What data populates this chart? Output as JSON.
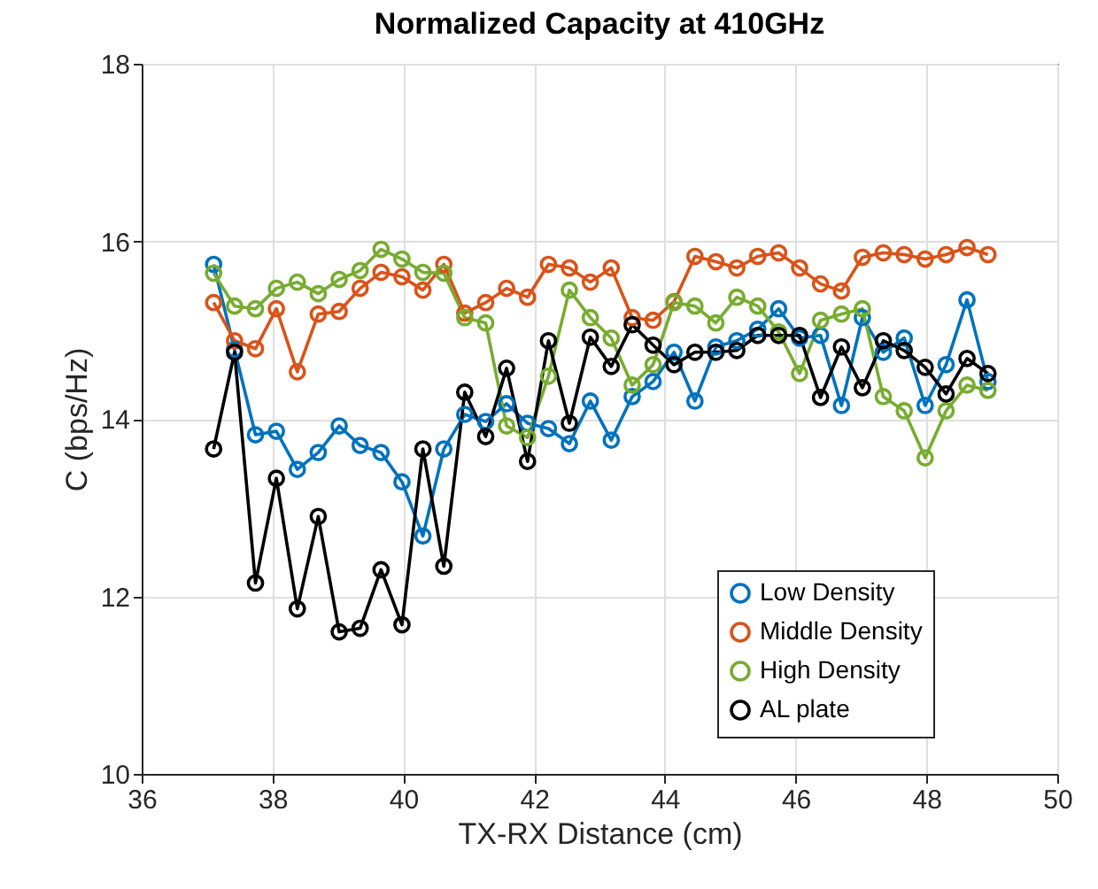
{
  "chart_data": {
    "type": "line",
    "title": "Normalized Capacity at 410GHz",
    "xlabel": "TX-RX Distance (cm)",
    "ylabel": "C (bps/Hz)",
    "x": [
      37.1,
      37.42,
      37.74,
      38.06,
      38.38,
      38.7,
      39.02,
      39.34,
      39.66,
      39.98,
      40.3,
      40.62,
      40.94,
      41.26,
      41.58,
      41.9,
      42.22,
      42.54,
      42.86,
      43.18,
      43.5,
      43.82,
      44.14,
      44.46,
      44.78,
      45.1,
      45.42,
      45.74,
      46.06,
      46.38,
      46.7,
      47.02,
      47.34,
      47.66,
      47.98,
      48.3,
      48.62,
      48.94
    ],
    "series": [
      {
        "name": "Low Density",
        "color": "#0072bd",
        "values": [
          15.74,
          14.78,
          13.82,
          13.86,
          13.43,
          13.62,
          13.92,
          13.7,
          13.62,
          13.29,
          12.68,
          13.66,
          14.05,
          13.97,
          14.17,
          13.95,
          13.89,
          13.72,
          14.2,
          13.76,
          14.25,
          14.42,
          14.75,
          14.2,
          14.81,
          14.88,
          15.01,
          15.24,
          14.91,
          14.94,
          14.15,
          15.14,
          14.75,
          14.91,
          14.15,
          14.61,
          15.34,
          14.42
        ]
      },
      {
        "name": "Middle Density",
        "color": "#d95319",
        "values": [
          15.31,
          14.88,
          14.79,
          15.24,
          14.53,
          15.18,
          15.21,
          15.47,
          15.65,
          15.6,
          15.45,
          15.74,
          15.19,
          15.31,
          15.47,
          15.37,
          15.74,
          15.7,
          15.54,
          15.7,
          15.14,
          15.11,
          15.32,
          15.83,
          15.77,
          15.7,
          15.83,
          15.87,
          15.7,
          15.52,
          15.44,
          15.82,
          15.87,
          15.85,
          15.8,
          15.85,
          15.93,
          15.85
        ]
      },
      {
        "name": "High Density",
        "color": "#77ac30",
        "values": [
          15.64,
          15.27,
          15.24,
          15.47,
          15.54,
          15.41,
          15.57,
          15.67,
          15.91,
          15.8,
          15.65,
          15.64,
          15.14,
          15.08,
          13.92,
          13.79,
          14.48,
          15.45,
          15.14,
          14.91,
          14.38,
          14.61,
          15.31,
          15.27,
          15.08,
          15.37,
          15.27,
          14.98,
          14.51,
          15.11,
          15.18,
          15.24,
          14.25,
          14.09,
          13.56,
          14.09,
          14.38,
          14.32
        ]
      },
      {
        "name": "AL plate",
        "color": "#000000",
        "values": [
          13.66,
          14.75,
          12.15,
          13.33,
          11.86,
          12.9,
          11.6,
          11.64,
          12.3,
          11.68,
          13.66,
          12.34,
          14.3,
          13.8,
          14.57,
          13.52,
          14.88,
          13.95,
          14.92,
          14.59,
          15.06,
          14.83,
          14.61,
          14.75,
          14.75,
          14.77,
          14.94,
          14.94,
          14.94,
          14.24,
          14.81,
          14.35,
          14.88,
          14.77,
          14.58,
          14.28,
          14.68,
          14.51
        ]
      }
    ],
    "xlim": [
      36,
      50
    ],
    "xticks": [
      36,
      38,
      40,
      42,
      44,
      46,
      48,
      50
    ],
    "ylim": [
      10,
      18
    ],
    "yticks": [
      10,
      12,
      14,
      16,
      18
    ],
    "grid": true,
    "legend": "bottom right",
    "marker": "circle",
    "line_style": "solid"
  }
}
